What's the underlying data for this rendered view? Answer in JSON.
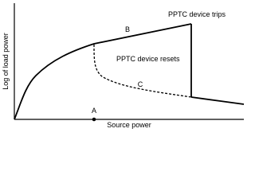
{
  "labels": {
    "y_axis": "Log of load power",
    "x_axis": "Source power",
    "trips": "PPTC device trips",
    "resets": "PPTC device resets",
    "b": "B",
    "c": "C",
    "a": "A"
  }
}
